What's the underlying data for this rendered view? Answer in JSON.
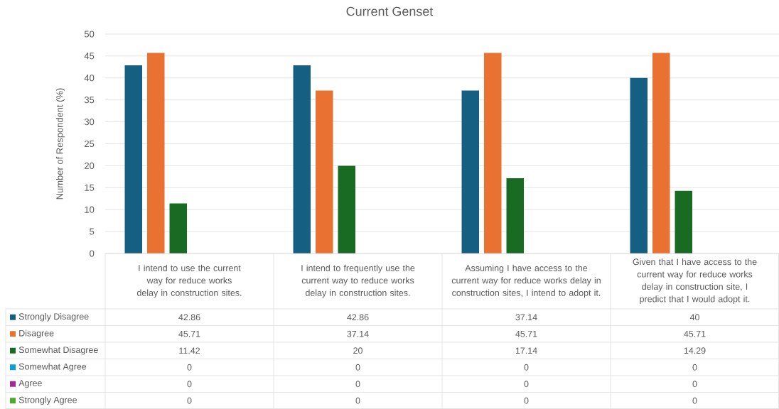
{
  "chart_data": {
    "type": "bar",
    "title": "Current Genset",
    "ylabel": "Number of Respondent (%)",
    "categories": [
      "I intend to use the current way for reduce works delay in construction sites.",
      "I intend to frequently use the current way to reduce works delay in construction sites.",
      "Assuming I have access to the current way for reduce works delay in construction sites, I intend to adopt it.",
      "Given that I have access to the current way for reduce works delay in construction site, I predict that I would adopt it."
    ],
    "series": [
      {
        "name": "Strongly Disagree",
        "color": "#156082",
        "values": [
          42.86,
          42.86,
          37.14,
          40
        ]
      },
      {
        "name": "Disagree",
        "color": "#e97132",
        "values": [
          45.71,
          37.14,
          45.71,
          45.71
        ]
      },
      {
        "name": "Somewhat Disagree",
        "color": "#196b24",
        "values": [
          11.42,
          20,
          17.14,
          14.29
        ]
      },
      {
        "name": "Somewhat Agree",
        "color": "#0f9ed5",
        "values": [
          0,
          0,
          0,
          0
        ]
      },
      {
        "name": "Agree",
        "color": "#a02b93",
        "values": [
          0,
          0,
          0,
          0
        ]
      },
      {
        "name": "Strongly Agree",
        "color": "#4ea72e",
        "values": [
          0,
          0,
          0,
          0
        ]
      }
    ],
    "ylim": [
      0,
      50
    ],
    "yticks": [
      0,
      5,
      10,
      15,
      20,
      25,
      30,
      35,
      40,
      45,
      50
    ],
    "grid": "y",
    "legend": "bottom",
    "data_labels": true
  }
}
